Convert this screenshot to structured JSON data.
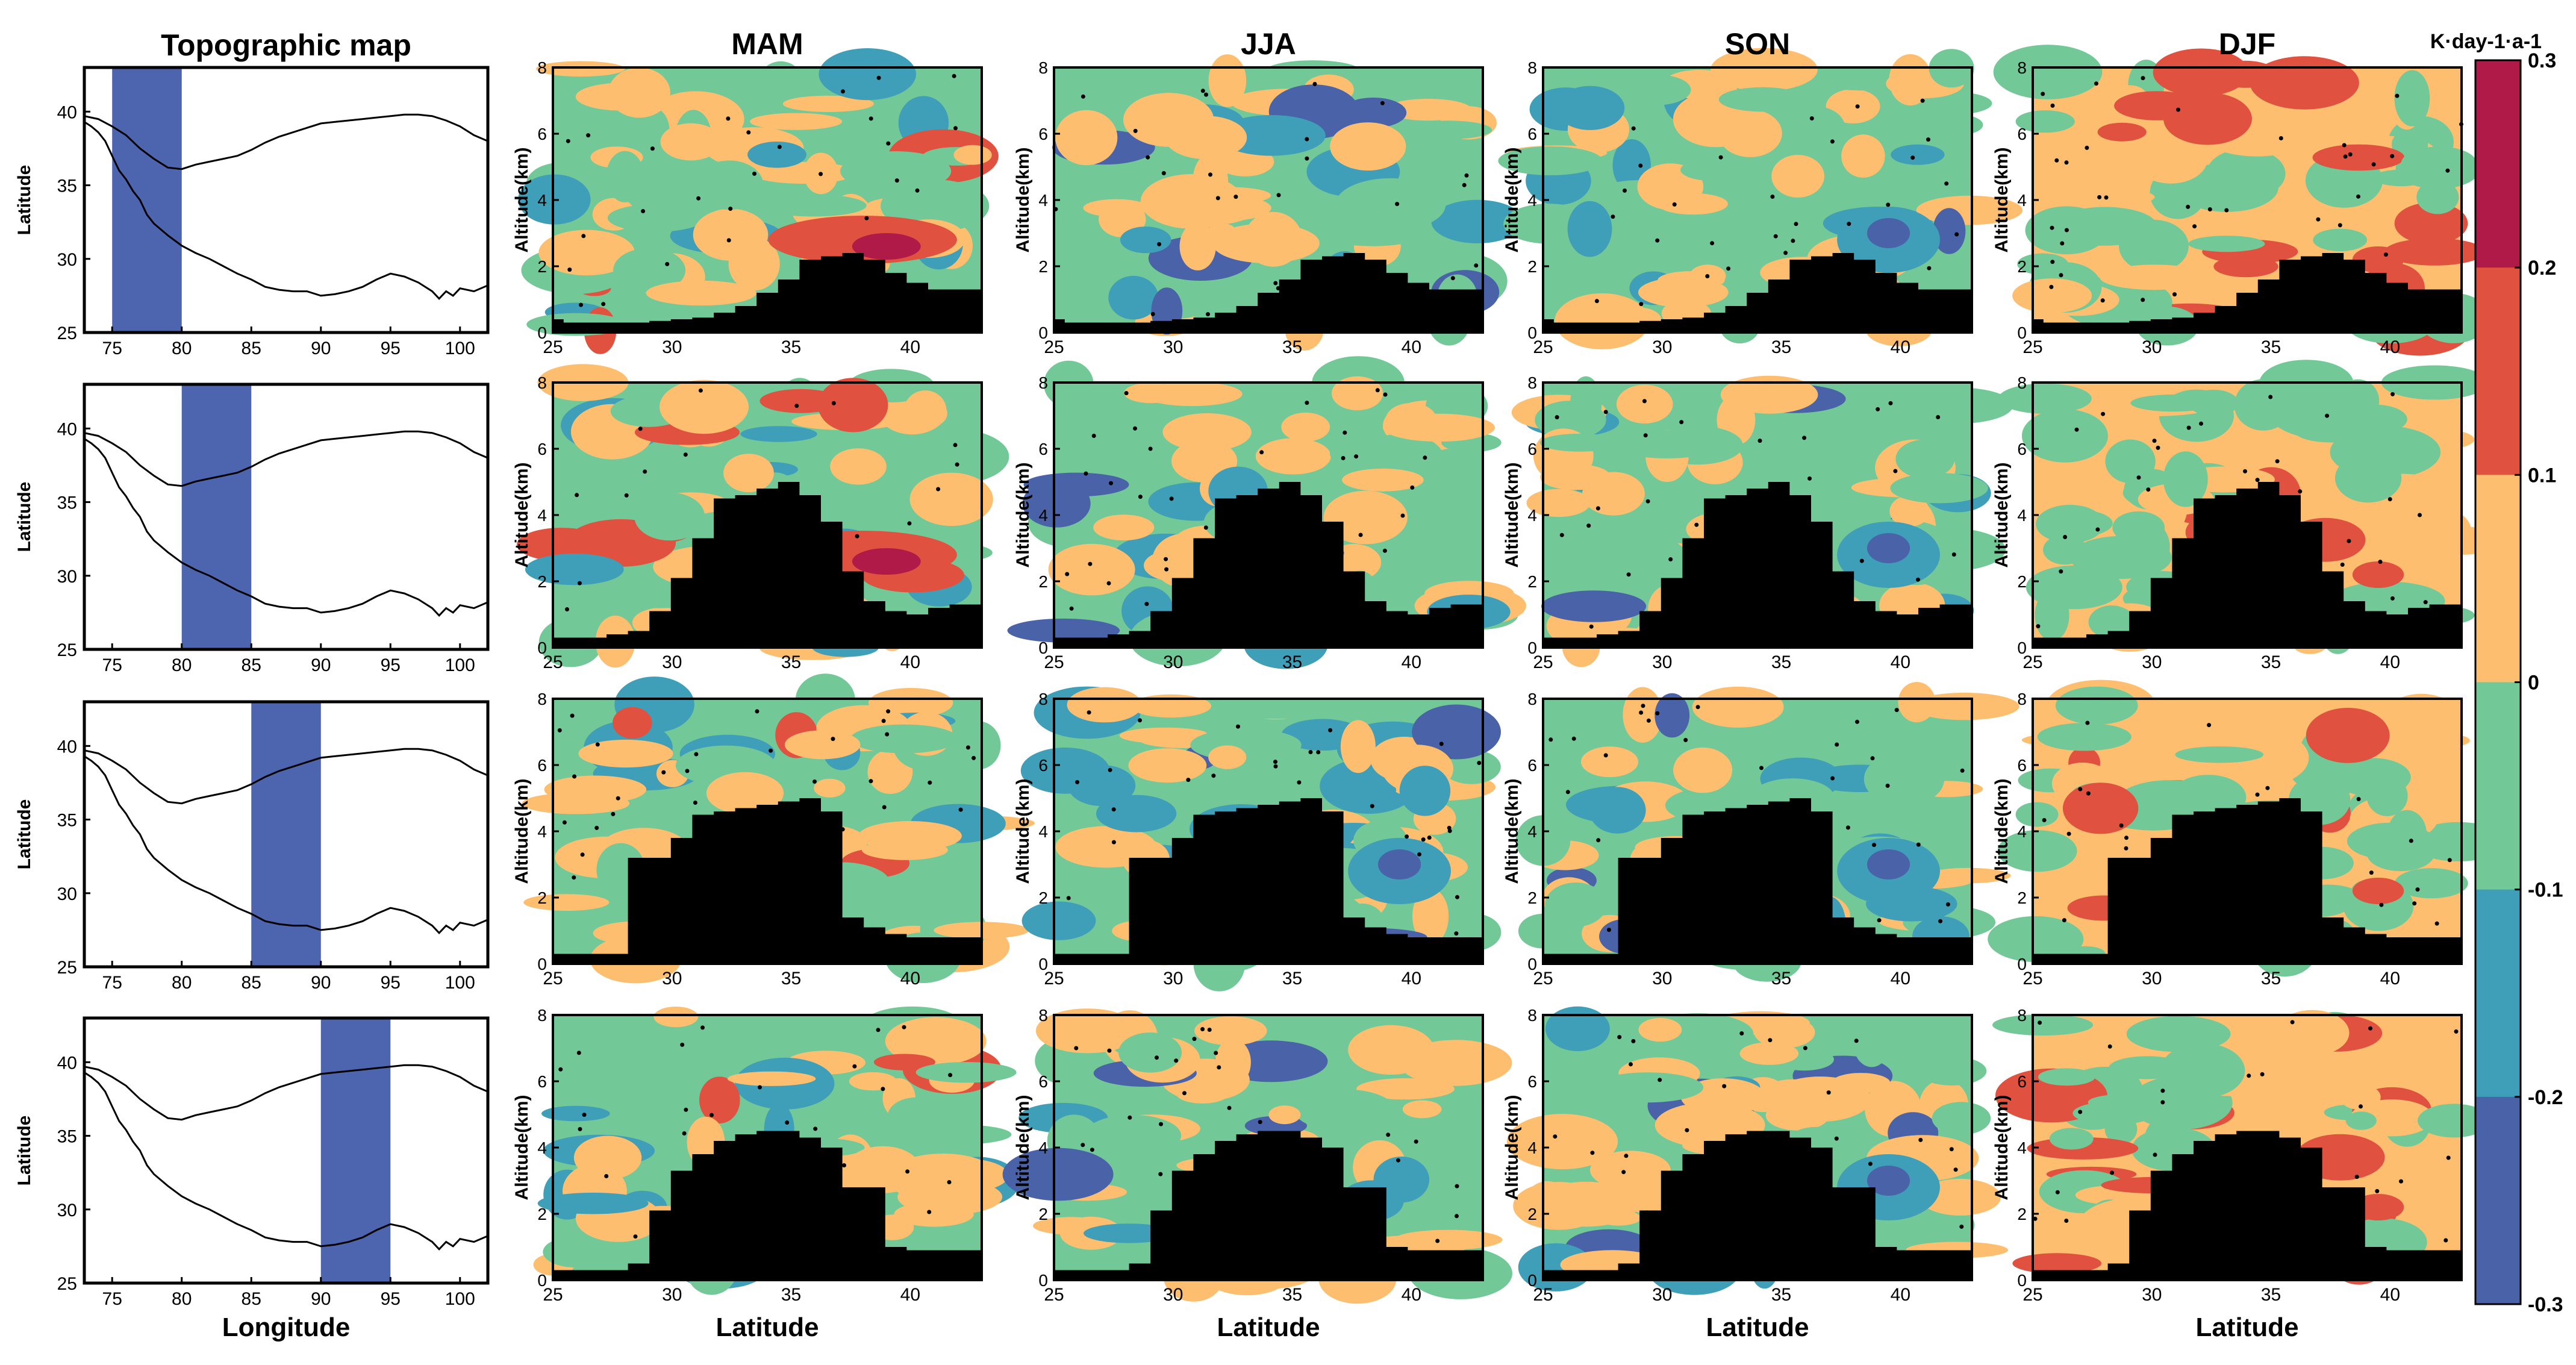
{
  "chart_data": {
    "type": "heatmap",
    "description_text": {
      "map_title": "Topographic map",
      "seasons": [
        "MAM",
        "JJA",
        "SON",
        "DJF"
      ],
      "map_ylabel": "Latitude",
      "map_xlabel": "Longitude",
      "panel_ylabel": "Altitude(km)",
      "panel_xlabel": "Latitude",
      "colorbar_unit": "K·day-1·a-1"
    },
    "map_xticks": [
      75,
      80,
      85,
      90,
      95,
      100
    ],
    "map_yticks": [
      25,
      30,
      35,
      40
    ],
    "map_xlim": [
      73,
      102
    ],
    "map_ylim": [
      25,
      43
    ],
    "lon_bands": [
      [
        75,
        80
      ],
      [
        80,
        85
      ],
      [
        85,
        90
      ],
      [
        90,
        95
      ]
    ],
    "panel_xticks": [
      25,
      30,
      35,
      40
    ],
    "panel_yticks": [
      0,
      2,
      4,
      6,
      8
    ],
    "panel_xlim": [
      25,
      43
    ],
    "panel_ylim": [
      0,
      8
    ],
    "colorbar": {
      "ticks": [
        "0.3",
        "0.2",
        "0.1",
        "0",
        "-0.1",
        "-0.2",
        "-0.3"
      ],
      "levels": [
        -0.3,
        -0.2,
        -0.1,
        0,
        0.1,
        0.2,
        0.3
      ],
      "colors": [
        "#4a62a8",
        "#3f9fb8",
        "#72c997",
        "#fdbf6f",
        "#e0523f",
        "#b01a48"
      ]
    },
    "terrain_color": "#000000",
    "stipple_color": "#000000",
    "terrain_profiles_km": [
      [
        0.4,
        0.3,
        0.3,
        0.3,
        0.3,
        0.35,
        0.4,
        0.45,
        0.6,
        0.8,
        1.2,
        1.6,
        2.2,
        2.3,
        2.4,
        2.2,
        1.8,
        1.5,
        1.3,
        1.3,
        1.3
      ],
      [
        0.3,
        0.3,
        0.3,
        0.4,
        0.5,
        1.1,
        2.1,
        3.3,
        4.5,
        4.6,
        4.8,
        5.0,
        4.6,
        3.8,
        2.3,
        1.4,
        1.1,
        1.0,
        1.2,
        1.3,
        1.3
      ],
      [
        0.3,
        0.3,
        0.3,
        0.3,
        3.2,
        3.2,
        3.8,
        4.5,
        4.6,
        4.7,
        4.8,
        4.9,
        5.0,
        4.6,
        1.4,
        1.1,
        0.9,
        0.8,
        0.8,
        0.8,
        0.8
      ],
      [
        0.3,
        0.3,
        0.3,
        0.3,
        0.5,
        2.1,
        3.3,
        3.8,
        4.2,
        4.4,
        4.5,
        4.5,
        4.3,
        4.0,
        2.8,
        2.8,
        1.0,
        0.9,
        0.9,
        0.9,
        0.9
      ]
    ]
  }
}
